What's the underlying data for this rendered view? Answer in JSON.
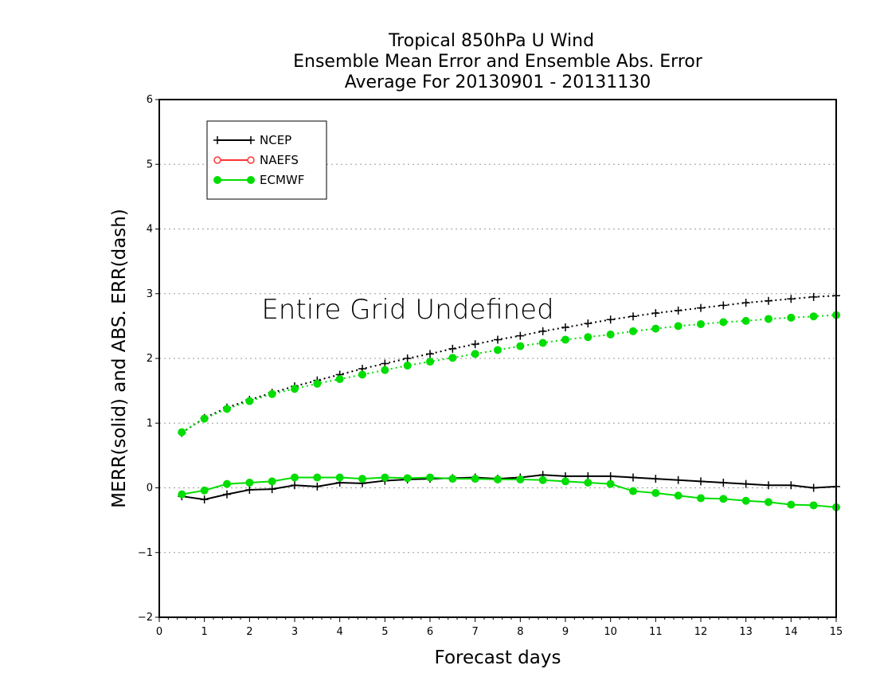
{
  "chart_data": {
    "type": "line",
    "title": [
      "Tropical 850hPa U Wind",
      "Ensemble Mean Error and Ensemble Abs. Error",
      "Average For 20130901 - 20131130"
    ],
    "xlabel": "Forecast days",
    "ylabel": "MERR(solid) and ABS. ERR(dash)",
    "xlim": [
      0,
      15
    ],
    "ylim": [
      -2,
      6
    ],
    "xticks": [
      "0",
      "1",
      "2",
      "3",
      "4",
      "5",
      "6",
      "7",
      "8",
      "9",
      "10",
      "11",
      "12",
      "13",
      "14",
      "15"
    ],
    "yticks": [
      "−2",
      "−1",
      "0",
      "1",
      "2",
      "3",
      "4",
      "5",
      "6"
    ],
    "grid": "horizontal dotted",
    "legend_placement": "top-left",
    "annotation": "Entire Grid Undefined",
    "colors": {
      "NCEP": "#000000",
      "NAEFS": "#ff3333",
      "ECMWF": "#00dd00"
    },
    "x": [
      0.5,
      1,
      1.5,
      2,
      2.5,
      3,
      3.5,
      4,
      4.5,
      5,
      5.5,
      6,
      6.5,
      7,
      7.5,
      8,
      8.5,
      9,
      9.5,
      10,
      10.5,
      11,
      11.5,
      12,
      12.5,
      13,
      13.5,
      14,
      14.5,
      15
    ],
    "series": [
      {
        "name": "NCEP",
        "style": "solid",
        "marker": "plus",
        "values": [
          -0.13,
          -0.18,
          -0.1,
          -0.03,
          -0.02,
          0.04,
          0.02,
          0.08,
          0.07,
          0.11,
          0.13,
          0.14,
          0.15,
          0.16,
          0.14,
          0.16,
          0.2,
          0.18,
          0.18,
          0.18,
          0.16,
          0.14,
          0.12,
          0.1,
          0.08,
          0.06,
          0.04,
          0.04,
          0.0,
          0.02
        ]
      },
      {
        "name": "NCEP",
        "style": "dotted",
        "marker": "plus",
        "values": [
          0.85,
          1.08,
          1.24,
          1.36,
          1.47,
          1.57,
          1.66,
          1.75,
          1.84,
          1.92,
          2.0,
          2.07,
          2.15,
          2.22,
          2.29,
          2.35,
          2.42,
          2.48,
          2.54,
          2.6,
          2.65,
          2.7,
          2.74,
          2.78,
          2.82,
          2.86,
          2.89,
          2.92,
          2.95,
          2.97
        ]
      },
      {
        "name": "ECMWF",
        "style": "solid",
        "marker": "filled-circle",
        "values": [
          -0.1,
          -0.04,
          0.06,
          0.08,
          0.1,
          0.16,
          0.16,
          0.16,
          0.14,
          0.16,
          0.15,
          0.16,
          0.14,
          0.14,
          0.13,
          0.13,
          0.12,
          0.1,
          0.08,
          0.06,
          -0.05,
          -0.08,
          -0.12,
          -0.16,
          -0.17,
          -0.2,
          -0.22,
          -0.26,
          -0.27,
          -0.3
        ]
      },
      {
        "name": "ECMWF",
        "style": "dotted",
        "marker": "filled-circle",
        "values": [
          0.86,
          1.07,
          1.22,
          1.34,
          1.45,
          1.53,
          1.61,
          1.68,
          1.75,
          1.82,
          1.89,
          1.95,
          2.01,
          2.07,
          2.13,
          2.19,
          2.24,
          2.29,
          2.33,
          2.37,
          2.42,
          2.46,
          2.5,
          2.53,
          2.56,
          2.58,
          2.61,
          2.63,
          2.65,
          2.67
        ]
      }
    ],
    "legend": [
      {
        "label": "NCEP",
        "marker": "plus"
      },
      {
        "label": "NAEFS",
        "marker": "open-circle"
      },
      {
        "label": "ECMWF",
        "marker": "filled-circle"
      }
    ]
  }
}
